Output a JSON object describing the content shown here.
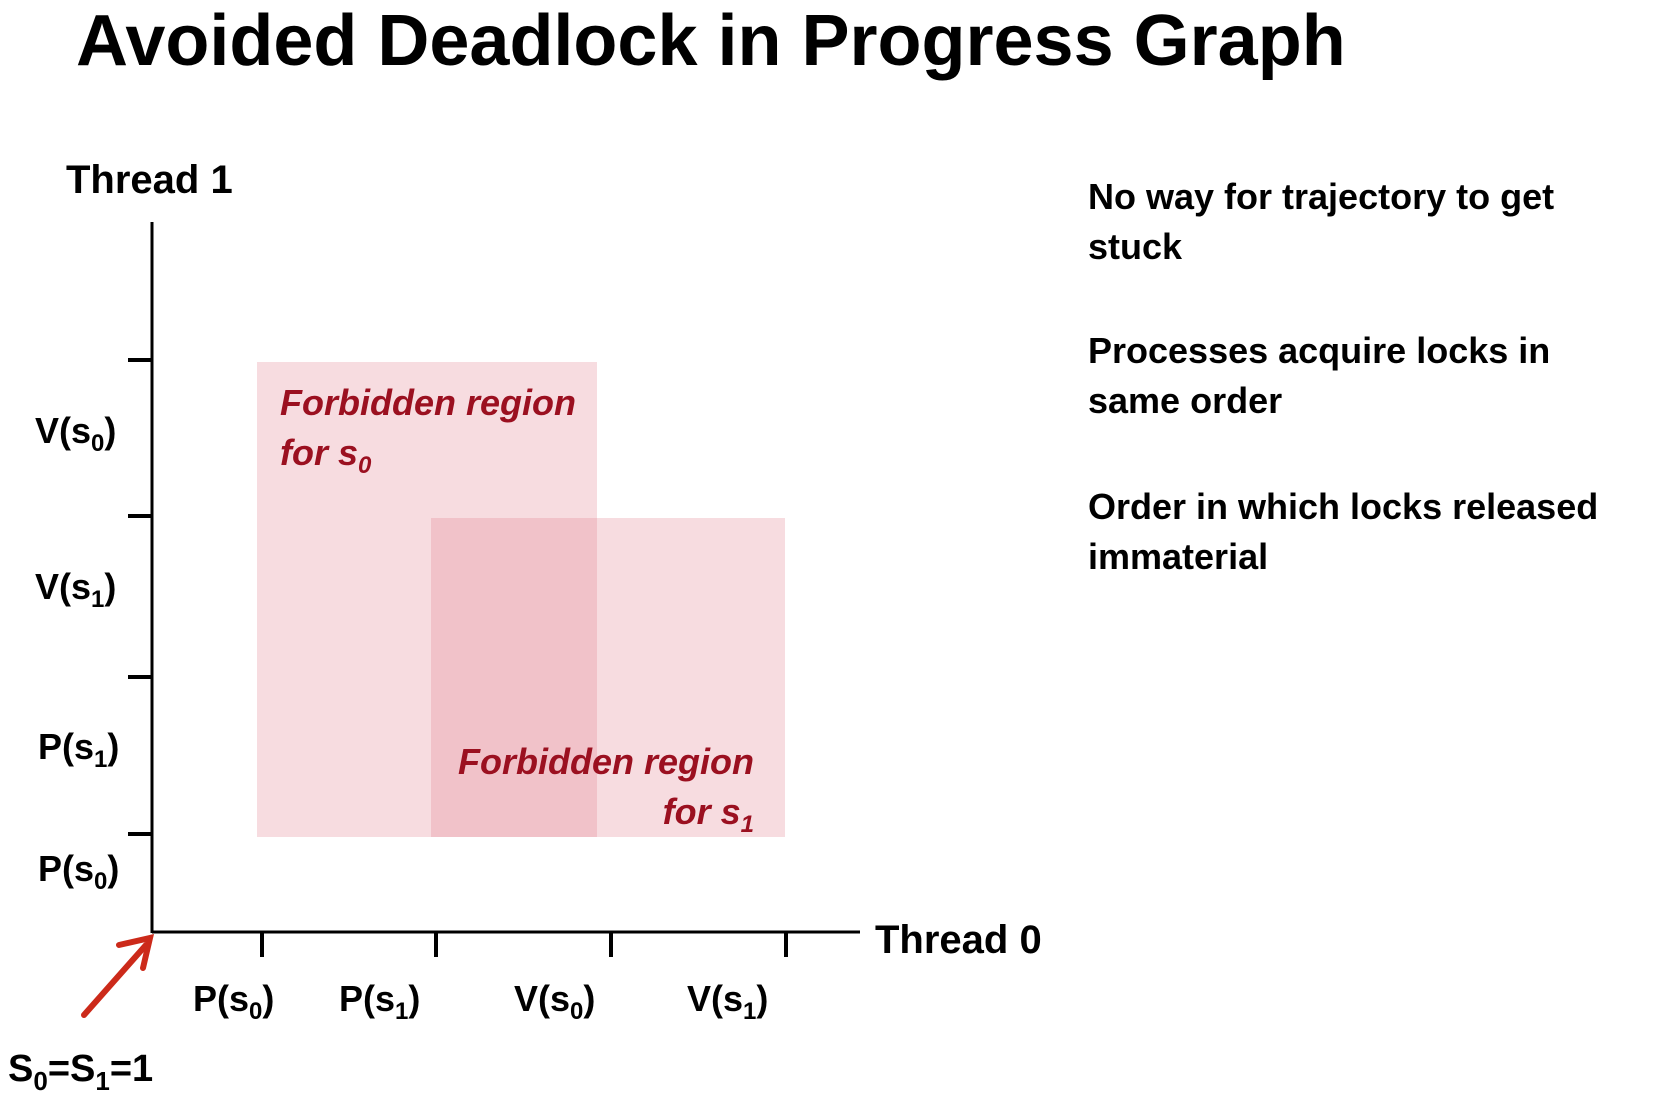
{
  "title": "Avoided Deadlock in Progress Graph",
  "y_axis": {
    "title": "Thread 1",
    "tick_labels": [
      {
        "base": "V(s",
        "sub": "0",
        "close": ")"
      },
      {
        "base": "V(s",
        "sub": "1",
        "close": ")"
      },
      {
        "base": "P(s",
        "sub": "1",
        "close": ")"
      },
      {
        "base": "P(s",
        "sub": "0",
        "close": ")"
      }
    ]
  },
  "x_axis": {
    "title": "Thread 0",
    "tick_labels": [
      {
        "base": "P(s",
        "sub": "0",
        "close": ")"
      },
      {
        "base": "P(s",
        "sub": "1",
        "close": ")"
      },
      {
        "base": "V(s",
        "sub": "0",
        "close": ")"
      },
      {
        "base": "V(s",
        "sub": "1",
        "close": ")"
      }
    ]
  },
  "regions": [
    {
      "line1": "Forbidden region",
      "line2_prefix": "for s",
      "line2_sub": "0"
    },
    {
      "line1": "Forbidden region",
      "line2_prefix": "for s",
      "line2_sub": "1"
    }
  ],
  "initial_state": {
    "s0": "S",
    "s0_sub": "0",
    "eq1": "=S",
    "s1_sub": "1",
    "eq2": "=1"
  },
  "notes": [
    "No way for trajectory to get stuck",
    "Processes acquire locks in same order",
    "Order in which locks released immaterial"
  ],
  "colors": {
    "region_fill": "#f2c8cd",
    "region_text": "#9b1020",
    "arrow": "#cc2a1a"
  }
}
